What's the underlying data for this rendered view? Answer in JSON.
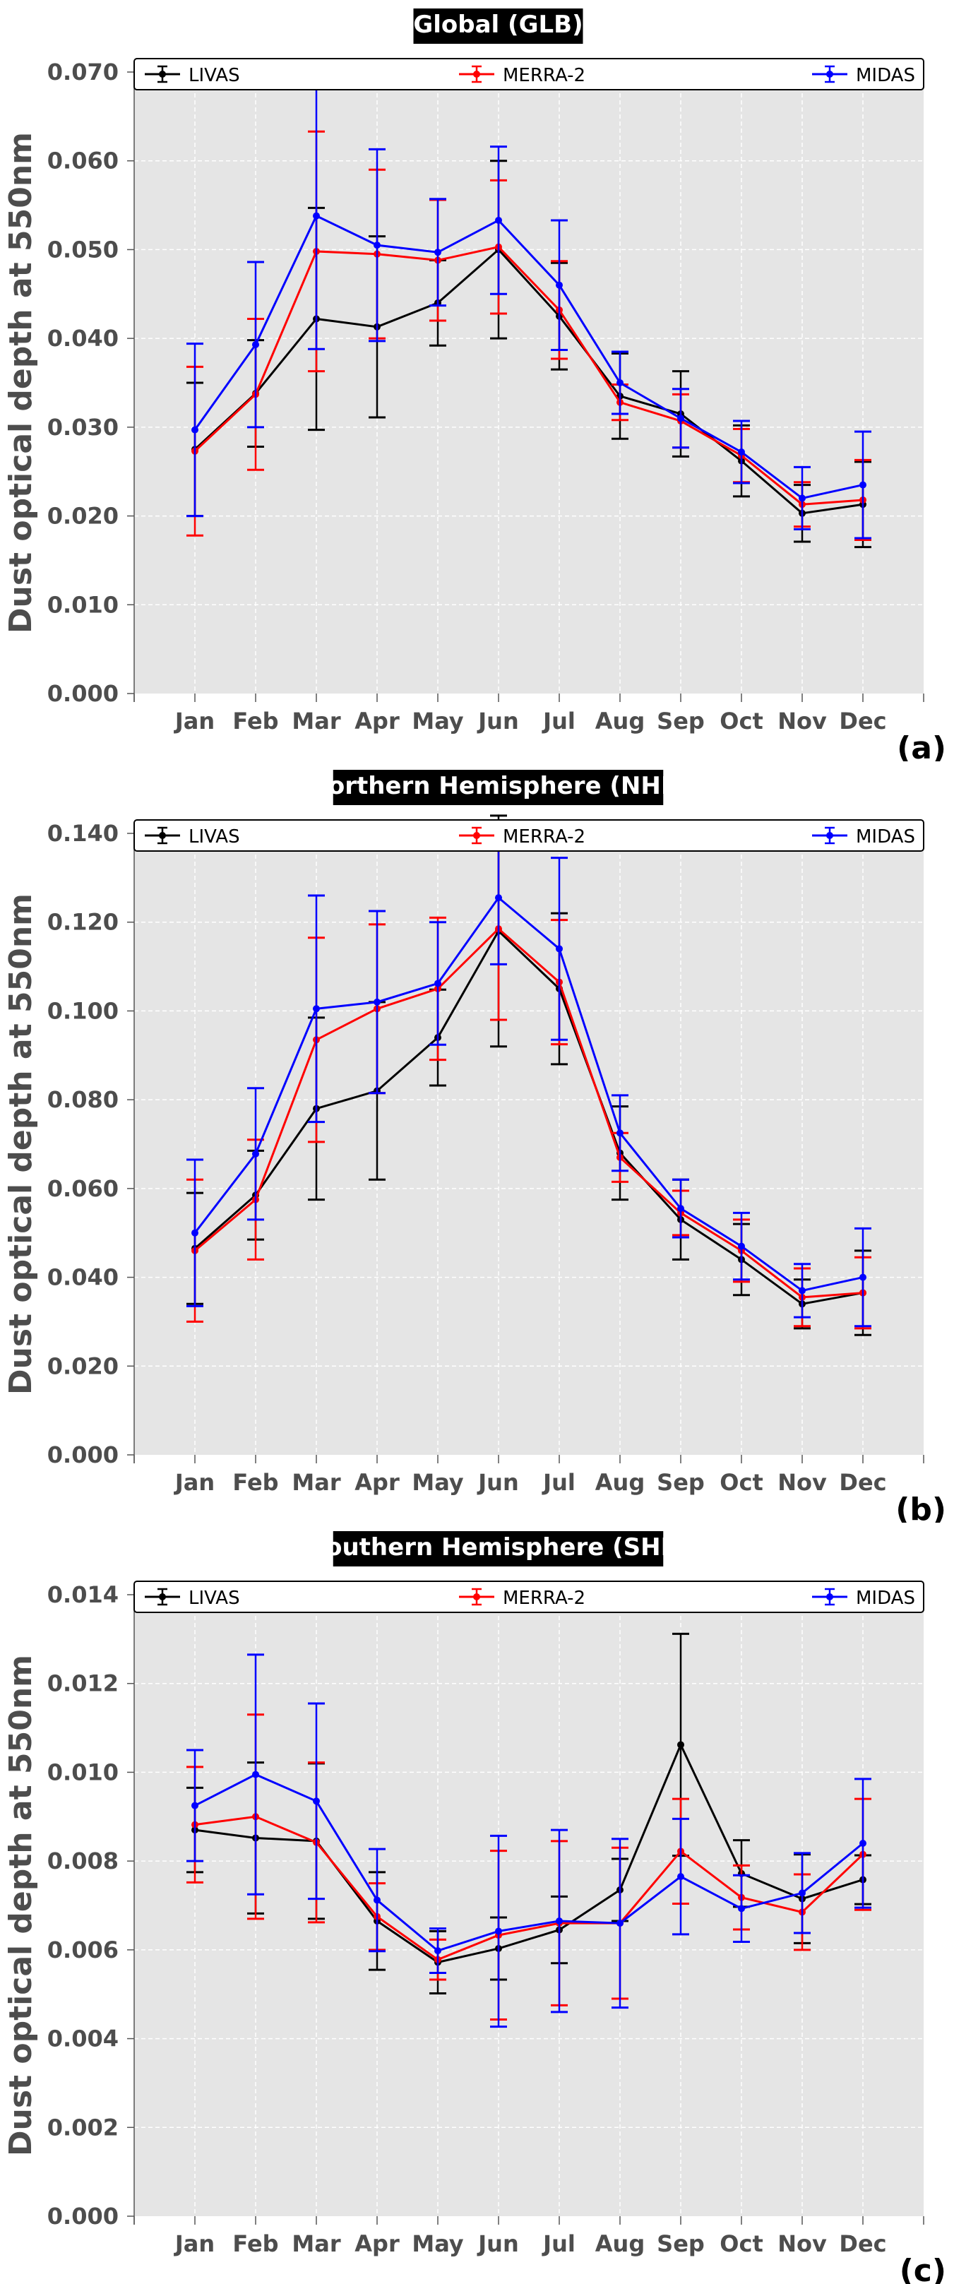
{
  "months": [
    "Jan",
    "Feb",
    "Mar",
    "Apr",
    "May",
    "Jun",
    "Jul",
    "Aug",
    "Sep",
    "Oct",
    "Nov",
    "Dec"
  ],
  "ylabel": "Dust optical depth at 550nm",
  "colors": {
    "LIVAS": "#000000",
    "MERRA-2": "#ff0000",
    "MIDAS": "#0000ff",
    "plot_bg": "#e5e5e5",
    "grid": "#ffffff"
  },
  "chart_data": [
    {
      "type": "line",
      "title": "Global (GLB)",
      "panel_label": "(a)",
      "ylim": [
        0,
        0.07
      ],
      "yticks": [
        "0.000",
        "0.010",
        "0.020",
        "0.030",
        "0.040",
        "0.050",
        "0.060",
        "0.070"
      ],
      "ytick_values": [
        0,
        0.01,
        0.02,
        0.03,
        0.04,
        0.05,
        0.06,
        0.07
      ],
      "xlabel": "",
      "ylabel": "Dust optical depth at 550nm",
      "categories": [
        "Jan",
        "Feb",
        "Mar",
        "Apr",
        "May",
        "Jun",
        "Jul",
        "Aug",
        "Sep",
        "Oct",
        "Nov",
        "Dec"
      ],
      "grid": true,
      "legend": "top",
      "series": [
        {
          "name": "LIVAS",
          "color": "#000000",
          "values": [
            0.0275,
            0.0338,
            0.0422,
            0.0413,
            0.044,
            0.05,
            0.0425,
            0.0335,
            0.0315,
            0.0262,
            0.0203,
            0.0213
          ],
          "err": [
            0.0075,
            0.006,
            0.0125,
            0.0102,
            0.0048,
            0.01,
            0.006,
            0.0048,
            0.0048,
            0.004,
            0.0032,
            0.0048
          ]
        },
        {
          "name": "MERRA-2",
          "color": "#ff0000",
          "values": [
            0.0273,
            0.0337,
            0.0498,
            0.0495,
            0.0488,
            0.0503,
            0.0432,
            0.0328,
            0.0307,
            0.0268,
            0.0213,
            0.0218
          ],
          "err": [
            0.0095,
            0.0085,
            0.0135,
            0.0095,
            0.0068,
            0.0075,
            0.0055,
            0.002,
            0.003,
            0.003,
            0.0025,
            0.0045
          ]
        },
        {
          "name": "MIDAS",
          "color": "#0000ff",
          "values": [
            0.0297,
            0.0393,
            0.0538,
            0.0505,
            0.0497,
            0.0533,
            0.046,
            0.035,
            0.031,
            0.0272,
            0.022,
            0.0235
          ],
          "err": [
            0.0097,
            0.0093,
            0.015,
            0.0108,
            0.006,
            0.0083,
            0.0073,
            0.0035,
            0.0033,
            0.0035,
            0.0035,
            0.006
          ]
        }
      ]
    },
    {
      "type": "line",
      "title": "Northern Hemisphere (NHE)",
      "panel_label": "(b)",
      "ylim": [
        0,
        0.14
      ],
      "yticks": [
        "0.000",
        "0.020",
        "0.040",
        "0.060",
        "0.080",
        "0.100",
        "0.120",
        "0.140"
      ],
      "ytick_values": [
        0,
        0.02,
        0.04,
        0.06,
        0.08,
        0.1,
        0.12,
        0.14
      ],
      "xlabel": "",
      "ylabel": "Dust optical depth at 550nm",
      "categories": [
        "Jan",
        "Feb",
        "Mar",
        "Apr",
        "May",
        "Jun",
        "Jul",
        "Aug",
        "Sep",
        "Oct",
        "Nov",
        "Dec"
      ],
      "grid": true,
      "legend": "top",
      "series": [
        {
          "name": "LIVAS",
          "color": "#000000",
          "values": [
            0.0465,
            0.0585,
            0.078,
            0.082,
            0.094,
            0.118,
            0.105,
            0.068,
            0.053,
            0.044,
            0.034,
            0.0365
          ],
          "err": [
            0.0125,
            0.01,
            0.0205,
            0.02,
            0.0108,
            0.026,
            0.017,
            0.0105,
            0.009,
            0.008,
            0.0055,
            0.0095
          ]
        },
        {
          "name": "MERRA-2",
          "color": "#ff0000",
          "values": [
            0.046,
            0.0575,
            0.0935,
            0.1005,
            0.105,
            0.1185,
            0.1065,
            0.067,
            0.0545,
            0.046,
            0.0355,
            0.0365
          ],
          "err": [
            0.016,
            0.0135,
            0.023,
            0.019,
            0.016,
            0.0205,
            0.014,
            0.0055,
            0.005,
            0.007,
            0.0065,
            0.008
          ]
        },
        {
          "name": "MIDAS",
          "color": "#0000ff",
          "values": [
            0.05,
            0.0678,
            0.1005,
            0.102,
            0.1062,
            0.1255,
            0.114,
            0.0725,
            0.0555,
            0.047,
            0.037,
            0.04
          ],
          "err": [
            0.0165,
            0.0148,
            0.0255,
            0.0205,
            0.0138,
            0.015,
            0.0205,
            0.0085,
            0.0065,
            0.0075,
            0.006,
            0.011
          ]
        }
      ]
    },
    {
      "type": "line",
      "title": "Southern Hemisphere (SHE)",
      "panel_label": "(c)",
      "ylim": [
        0,
        0.014
      ],
      "yticks": [
        "0.000",
        "0.002",
        "0.004",
        "0.006",
        "0.008",
        "0.010",
        "0.012",
        "0.014"
      ],
      "ytick_values": [
        0,
        0.002,
        0.004,
        0.006,
        0.008,
        0.01,
        0.012,
        0.014
      ],
      "xlabel": "",
      "ylabel": "Dust optical depth at 550nm",
      "categories": [
        "Jan",
        "Feb",
        "Mar",
        "Apr",
        "May",
        "Jun",
        "Jul",
        "Aug",
        "Sep",
        "Oct",
        "Nov",
        "Dec"
      ],
      "grid": true,
      "legend": "top",
      "series": [
        {
          "name": "LIVAS",
          "color": "#000000",
          "values": [
            0.0087,
            0.00852,
            0.00845,
            0.00665,
            0.00572,
            0.00603,
            0.00645,
            0.00735,
            0.01062,
            0.00772,
            0.00715,
            0.00758
          ],
          "err": [
            0.00095,
            0.0017,
            0.00175,
            0.0011,
            0.0007,
            0.0007,
            0.00075,
            0.0007,
            0.0025,
            0.00075,
            0.001,
            0.00055
          ]
        },
        {
          "name": "MERRA-2",
          "color": "#ff0000",
          "values": [
            0.00882,
            0.009,
            0.00842,
            0.00675,
            0.00578,
            0.00633,
            0.0066,
            0.0066,
            0.00822,
            0.00718,
            0.00685,
            0.00815
          ]
        },
        {
          "name": "MIDAS",
          "color": "#0000ff",
          "values": [
            0.00925,
            0.00995,
            0.00935,
            0.00712,
            0.00598,
            0.00642,
            0.00665,
            0.0066,
            0.00765,
            0.00693,
            0.00728,
            0.0084
          ],
          "err": [
            0.00125,
            0.0027,
            0.0022,
            0.00115,
            0.0005,
            0.00215,
            0.00205,
            0.0019,
            0.0013,
            0.00075,
            0.0009,
            0.00145
          ]
        }
      ]
    }
  ]
}
